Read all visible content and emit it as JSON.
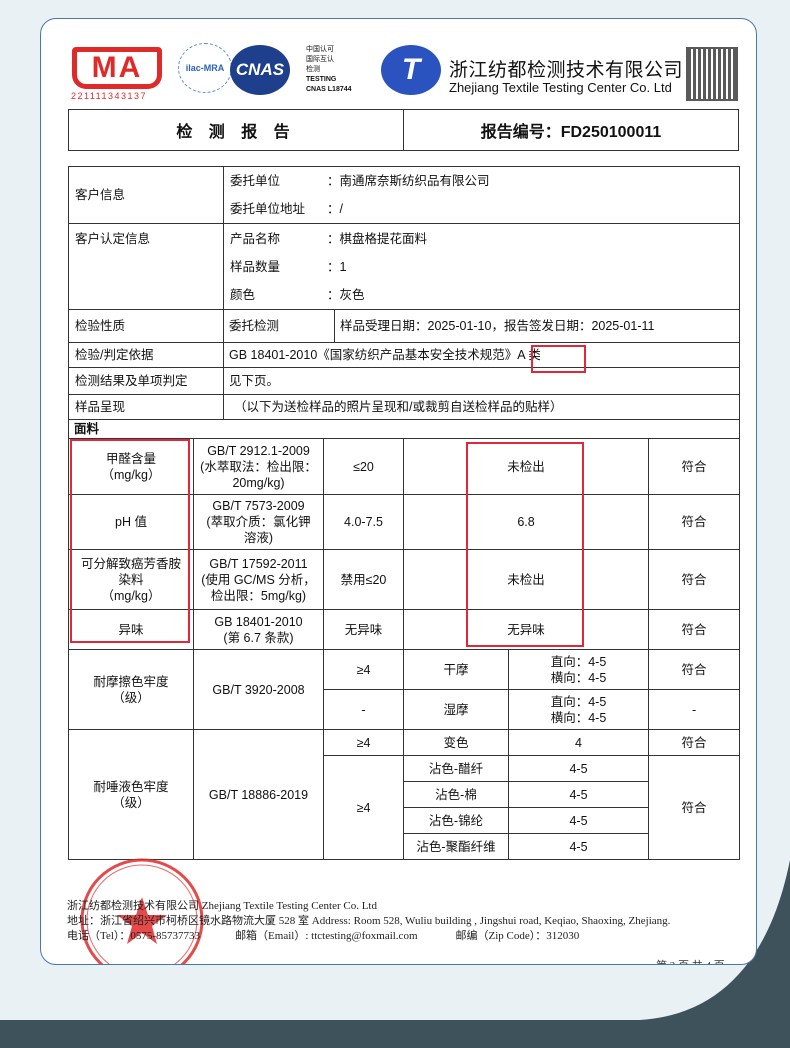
{
  "header": {
    "cma_text": "MA",
    "cma_number": "221111343137",
    "ilac_text": "ilac-MRA",
    "cnas_text": "CNAS",
    "cnas_lines": [
      "中国认可",
      "国际互认",
      "检测",
      "TESTING",
      "CNAS L18744"
    ],
    "company_cn": "浙江纺都检测技术有限公司",
    "company_en": "Zhejiang Textile Testing Center Co. Ltd",
    "report_title": "检 测 报 告",
    "report_no": "报告编号：FD250100011"
  },
  "info": {
    "client_label": "客户信息",
    "client_unit_k": "委托单位",
    "client_unit_v": "：南通席奈斯纺织品有限公司",
    "client_addr_k": "委托单位地址",
    "client_addr_v": "：/",
    "confirm_label": "客户认定信息",
    "product_k": "产品名称",
    "product_v": "：棋盘格提花面料",
    "qty_k": "样品数量",
    "qty_v": "：1",
    "color_k": "颜色",
    "color_v": "：灰色",
    "nature_label": "检验性质",
    "nature_v": "委托检测",
    "dates": "样品受理日期：2025-01-10，报告签发日期：2025-01-11",
    "basis_label": "检验/判定依据",
    "basis_v": "GB 18401-2010《国家纺织产品基本安全技术规范》A 类",
    "result_label": "检测结果及单项判定",
    "result_v": "见下页。",
    "sample_label": "样品呈现",
    "sample_v": "（以下为送检样品的照片呈现和/或裁剪自送检样品的贴样）"
  },
  "section": "面料",
  "tests": [
    {
      "item": "甲醛含量\n（mg/kg）",
      "std": "GB/T 2912.1-2009\n(水萃取法：检出限：\n20mg/kg)",
      "req": "≤20",
      "result": "未检出",
      "verdict": "符合"
    },
    {
      "item": "pH 值",
      "std": "GB/T 7573-2009\n(萃取介质：氯化钾\n溶液)",
      "req": "4.0-7.5",
      "result": "6.8",
      "verdict": "符合"
    },
    {
      "item": "可分解致癌芳香胺\n染料\n（mg/kg）",
      "std": "GB/T 17592-2011\n(使用 GC/MS 分析，\n检出限：5mg/kg)",
      "req": "禁用≤20",
      "result": "未检出",
      "verdict": "符合"
    },
    {
      "item": "异味",
      "std": "GB 18401-2010\n(第 6.7 条款)",
      "req": "无异味",
      "result": "无异味",
      "verdict": "符合"
    }
  ],
  "rubbing": {
    "item": "耐摩擦色牢度\n（级）",
    "std": "GB/T 3920-2008",
    "rows": [
      {
        "req": "≥4",
        "method": "干摩",
        "value": "直向：4-5\n横向：4-5",
        "verdict": "符合"
      },
      {
        "req": "-",
        "method": "湿摩",
        "value": "直向：4-5\n横向：4-5",
        "verdict": "-"
      }
    ]
  },
  "saliva": {
    "item": "耐唾液色牢度\n（级）",
    "std": "GB/T 18886-2019",
    "req1": "≥4",
    "req2": "≥4",
    "rows": [
      {
        "method": "变色",
        "value": "4",
        "verdict": "符合"
      },
      {
        "method": "沾色-醋纤",
        "value": "4-5"
      },
      {
        "method": "沾色-棉",
        "value": "4-5"
      },
      {
        "method": "沾色-锦纶",
        "value": "4-5"
      },
      {
        "method": "沾色-聚酯纤维",
        "value": "4-5"
      }
    ],
    "verdict2": "符合"
  },
  "footer": {
    "line1": "浙江纺都检测技术有限公司 Zhejiang Textile Testing Center Co. Ltd",
    "line2": "地址：浙江省绍兴市柯桥区镜水路物流大厦 528 室  Address:   Room 528, Wuliu building , Jingshui road, Keqiao, Shaoxing, Zhejiang.",
    "tel": "电话（Tel）：0575-85737733",
    "email": "邮箱（Email）: ttctesting@foxmail.com",
    "zip": "邮编（Zip Code）：312030",
    "page": "第 2 页 共 4 页"
  },
  "stamp_text": "浙江纺都检测技术有限公司 检验检测专用章",
  "colors": {
    "highlight": "#e0283a",
    "stamp": "#e02a2a",
    "card_border": "#4a78a8",
    "background": "#e9f1f5",
    "dark_band": "#3d525a"
  }
}
